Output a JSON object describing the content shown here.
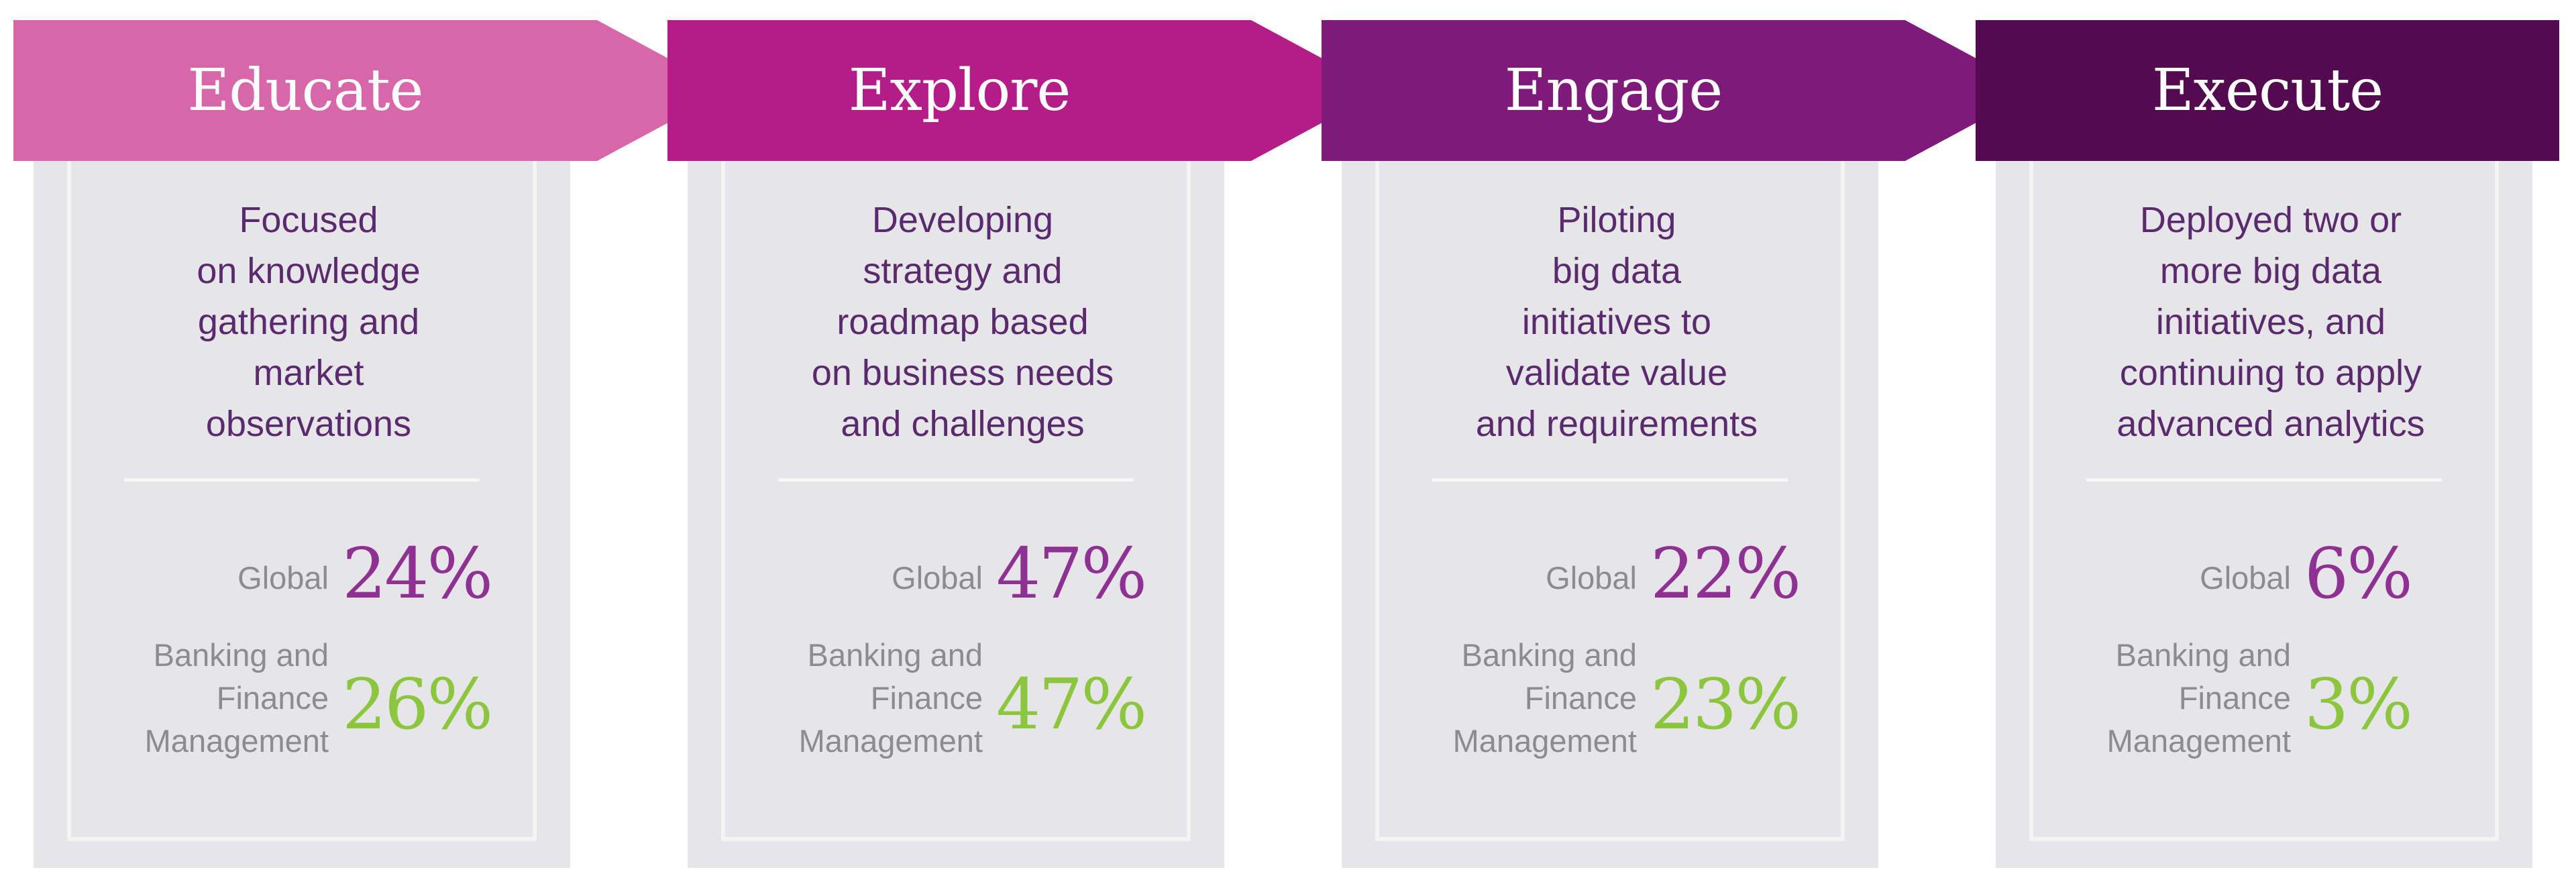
{
  "stages": [
    {
      "title": "Educate",
      "color": "#d767a8",
      "description": [
        "Focused",
        "on knowledge",
        "gathering and",
        "market",
        "observations"
      ],
      "global_label": "Global",
      "global_value": "24%",
      "bfm_label": [
        "Banking and",
        "Finance",
        "Management"
      ],
      "bfm_value": "26%"
    },
    {
      "title": "Explore",
      "color": "#b41c87",
      "description": [
        "Developing",
        "strategy and",
        "roadmap based",
        "on business needs",
        "and challenges"
      ],
      "global_label": "Global",
      "global_value": "47%",
      "bfm_label": [
        "Banking and",
        "Finance",
        "Management"
      ],
      "bfm_value": "47%"
    },
    {
      "title": "Engage",
      "color": "#7f1a7a",
      "description": [
        "Piloting",
        "big data",
        "initiatives to",
        "validate value",
        "and requirements"
      ],
      "global_label": "Global",
      "global_value": "22%",
      "bfm_label": [
        "Banking and",
        "Finance",
        "Management"
      ],
      "bfm_value": "23%"
    },
    {
      "title": "Execute",
      "color": "#530a4f",
      "description": [
        "Deployed two or",
        "more big data",
        "initiatives, and",
        "continuing to apply",
        "advanced analytics"
      ],
      "global_label": "Global",
      "global_value": "6%",
      "bfm_label": [
        "Banking and",
        "Finance",
        "Management"
      ],
      "bfm_value": "3%"
    }
  ],
  "colors": {
    "global_value": "#8e3192",
    "bfm_value": "#8cc63f",
    "description_text": "#5b2a6e",
    "label_text": "#8c8c8f",
    "card_background": "#e6e6e8"
  }
}
